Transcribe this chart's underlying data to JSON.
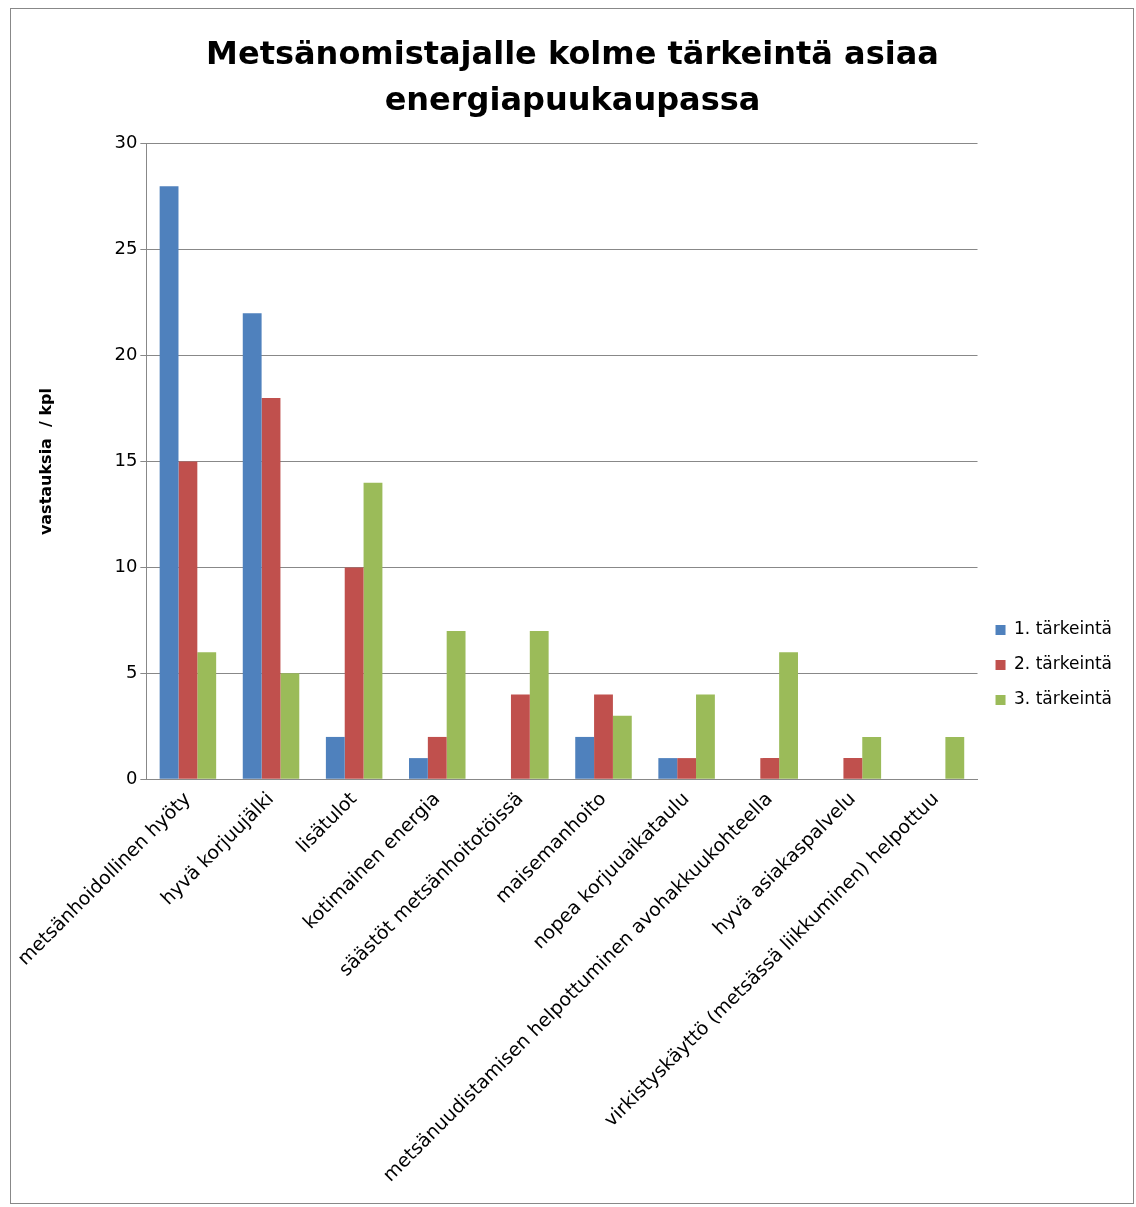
{
  "chart_data": {
    "type": "bar",
    "title": "Metsänomistajalle kolme tärkeintä asiaa energiapuukaupassa",
    "ylabel": "vastauksia  / kpl",
    "categories": [
      "metsänhoidollinen hyöty",
      "hyvä korjuujälki",
      "lisätulot",
      "kotimainen energia",
      "säästöt metsänhoitotöissä",
      "maisemanhoito",
      "nopea korjuuaikataulu",
      "metsänuudistamisen helpottuminen avohakkuukohteella",
      "hyvä asiakaspalvelu",
      "virkistyskäyttö (metsässä liikkuminen) helpottuu"
    ],
    "series": [
      {
        "name": "1. tärkeintä",
        "color": "#4f81bd",
        "values": [
          28,
          22,
          2,
          1,
          0,
          2,
          1,
          0,
          0,
          0
        ]
      },
      {
        "name": "2. tärkeintä",
        "color": "#c0504d",
        "values": [
          15,
          18,
          10,
          2,
          4,
          4,
          1,
          1,
          1,
          0
        ]
      },
      {
        "name": "3. tärkeintä",
        "color": "#9bbb59",
        "values": [
          6,
          5,
          14,
          7,
          7,
          3,
          4,
          6,
          2,
          2
        ]
      }
    ],
    "ylim": [
      0,
      30
    ],
    "yticks": [
      0,
      5,
      10,
      15,
      20,
      25,
      30
    ],
    "grid": "y",
    "legend": "right"
  }
}
